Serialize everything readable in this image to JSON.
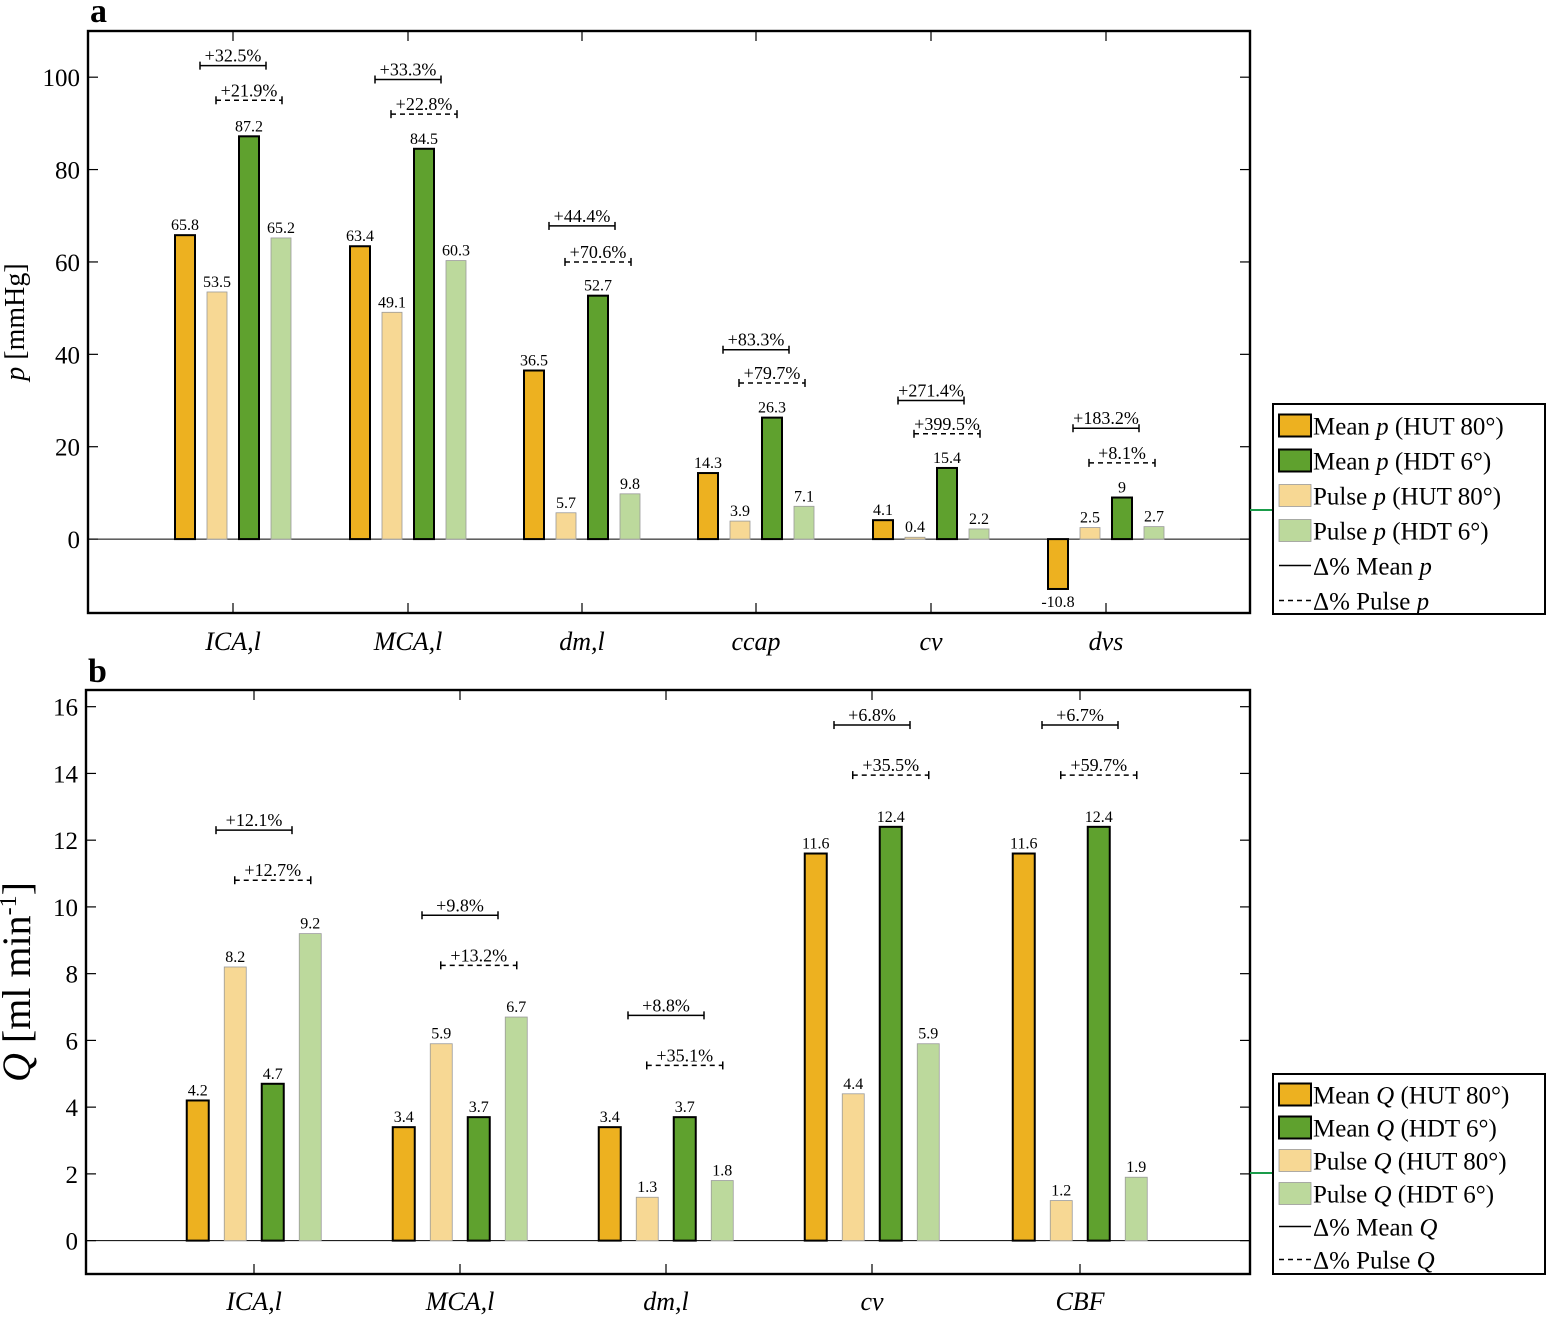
{
  "colors": {
    "mean_hut": "#EDB120",
    "mean_hdt": "#5FA12E",
    "pulse_hut": "#F7D894",
    "pulse_hdt": "#BCD99C",
    "axis": "#000000",
    "legend_connector": "#1a9c4a"
  },
  "chart_data": [
    {
      "panel_label": "a",
      "type": "bar",
      "ylabel": {
        "var": "p",
        "unit": "[mmHg]"
      },
      "ylim": [
        -16,
        110
      ],
      "yticks": [
        0,
        20,
        40,
        60,
        80,
        100
      ],
      "categories": [
        "ICA,l",
        "MCA,l",
        "dm,l",
        "ccap",
        "cv",
        "dvs"
      ],
      "series": [
        {
          "key": "mean_hut",
          "values": [
            65.8,
            63.4,
            36.5,
            14.3,
            4.1,
            -10.8
          ],
          "labels": [
            "65.8",
            "63.4",
            "36.5",
            "14.3",
            "4.1",
            "-10.8"
          ]
        },
        {
          "key": "pulse_hut",
          "values": [
            53.5,
            49.1,
            5.7,
            3.9,
            0.4,
            2.5
          ],
          "labels": [
            "53.5",
            "49.1",
            "5.7",
            "3.9",
            "0.4",
            "2.5"
          ]
        },
        {
          "key": "mean_hdt",
          "values": [
            87.2,
            84.5,
            52.7,
            26.3,
            15.4,
            9
          ],
          "labels": [
            "87.2",
            "84.5",
            "52.7",
            "26.3",
            "15.4",
            "9"
          ]
        },
        {
          "key": "pulse_hdt",
          "values": [
            65.2,
            60.3,
            9.8,
            7.1,
            2.2,
            2.7
          ],
          "labels": [
            "65.2",
            "60.3",
            "9.8",
            "7.1",
            "2.2",
            "2.7"
          ]
        }
      ],
      "delta_mean": [
        "+32.5%",
        "+33.3%",
        "+44.4%",
        "+83.3%",
        "+271.4%",
        "+183.2%"
      ],
      "delta_mean_y": [
        102.5,
        99.5,
        67.8,
        41.0,
        30.0,
        24.0
      ],
      "delta_pulse": [
        "+21.9%",
        "+22.8%",
        "+70.6%",
        "+79.7%",
        "+399.5%",
        "+8.1%"
      ],
      "delta_pulse_y": [
        95.0,
        92.0,
        60.0,
        33.8,
        22.8,
        16.5
      ],
      "legend": [
        {
          "key": "mean_hut",
          "style": "bar",
          "text": "Mean",
          "var": "p",
          "cond": "(HUT 80°)"
        },
        {
          "key": "mean_hdt",
          "style": "bar",
          "text": "Mean",
          "var": "p",
          "cond": "(HDT 6°)"
        },
        {
          "key": "pulse_hut",
          "style": "bar",
          "text": "Pulse",
          "var": "p",
          "cond": "(HUT 80°)"
        },
        {
          "key": "pulse_hdt",
          "style": "bar",
          "text": "Pulse",
          "var": "p",
          "cond": "(HDT 6°)"
        },
        {
          "key": "delta_mean",
          "style": "solid",
          "text": "Δ% Mean",
          "var": "p",
          "cond": ""
        },
        {
          "key": "delta_pulse",
          "style": "dashed",
          "text": "Δ% Pulse",
          "var": "p",
          "cond": ""
        }
      ]
    },
    {
      "panel_label": "b",
      "type": "bar",
      "ylabel": {
        "var": "Q",
        "unit": "[ml min",
        "unit_sup": "-1",
        "unit_end": "]"
      },
      "ylim": [
        -1,
        16.5
      ],
      "yticks": [
        0,
        2,
        4,
        6,
        8,
        10,
        12,
        14,
        16
      ],
      "categories": [
        "ICA,l",
        "MCA,l",
        "dm,l",
        "cv",
        "CBF"
      ],
      "series": [
        {
          "key": "mean_hut",
          "values": [
            4.2,
            3.4,
            3.4,
            11.6,
            11.6
          ],
          "labels": [
            "4.2",
            "3.4",
            "3.4",
            "11.6",
            "11.6"
          ]
        },
        {
          "key": "pulse_hut",
          "values": [
            8.2,
            5.9,
            1.3,
            4.4,
            1.2
          ],
          "labels": [
            "8.2",
            "5.9",
            "1.3",
            "4.4",
            "1.2"
          ]
        },
        {
          "key": "mean_hdt",
          "values": [
            4.7,
            3.7,
            3.7,
            12.4,
            12.4
          ],
          "labels": [
            "4.7",
            "3.7",
            "3.7",
            "12.4",
            "12.4"
          ]
        },
        {
          "key": "pulse_hdt",
          "values": [
            9.2,
            6.7,
            1.8,
            5.9,
            1.9
          ],
          "labels": [
            "9.2",
            "6.7",
            "1.8",
            "5.9",
            "1.9"
          ]
        }
      ],
      "delta_mean": [
        "+12.1%",
        "+9.8%",
        "+8.8%",
        "+6.8%",
        "+6.7%"
      ],
      "delta_mean_y": [
        12.3,
        9.75,
        6.75,
        15.45,
        15.45
      ],
      "delta_pulse": [
        "+12.7%",
        "+13.2%",
        "+35.1%",
        "+35.5%",
        "+59.7%"
      ],
      "delta_pulse_y": [
        10.8,
        8.25,
        5.25,
        13.95,
        13.95
      ],
      "legend": [
        {
          "key": "mean_hut",
          "style": "bar",
          "text": "Mean",
          "var": "Q",
          "cond": "(HUT 80°)"
        },
        {
          "key": "mean_hdt",
          "style": "bar",
          "text": "Mean",
          "var": "Q",
          "cond": "(HDT 6°)"
        },
        {
          "key": "pulse_hut",
          "style": "bar",
          "text": "Pulse",
          "var": "Q",
          "cond": "(HUT 80°)"
        },
        {
          "key": "pulse_hdt",
          "style": "bar",
          "text": "Pulse",
          "var": "Q",
          "cond": "(HDT 6°)"
        },
        {
          "key": "delta_mean",
          "style": "solid",
          "text": "Δ% Mean",
          "var": "Q",
          "cond": ""
        },
        {
          "key": "delta_pulse",
          "style": "dashed",
          "text": "Δ% Pulse",
          "var": "Q",
          "cond": ""
        }
      ]
    }
  ]
}
